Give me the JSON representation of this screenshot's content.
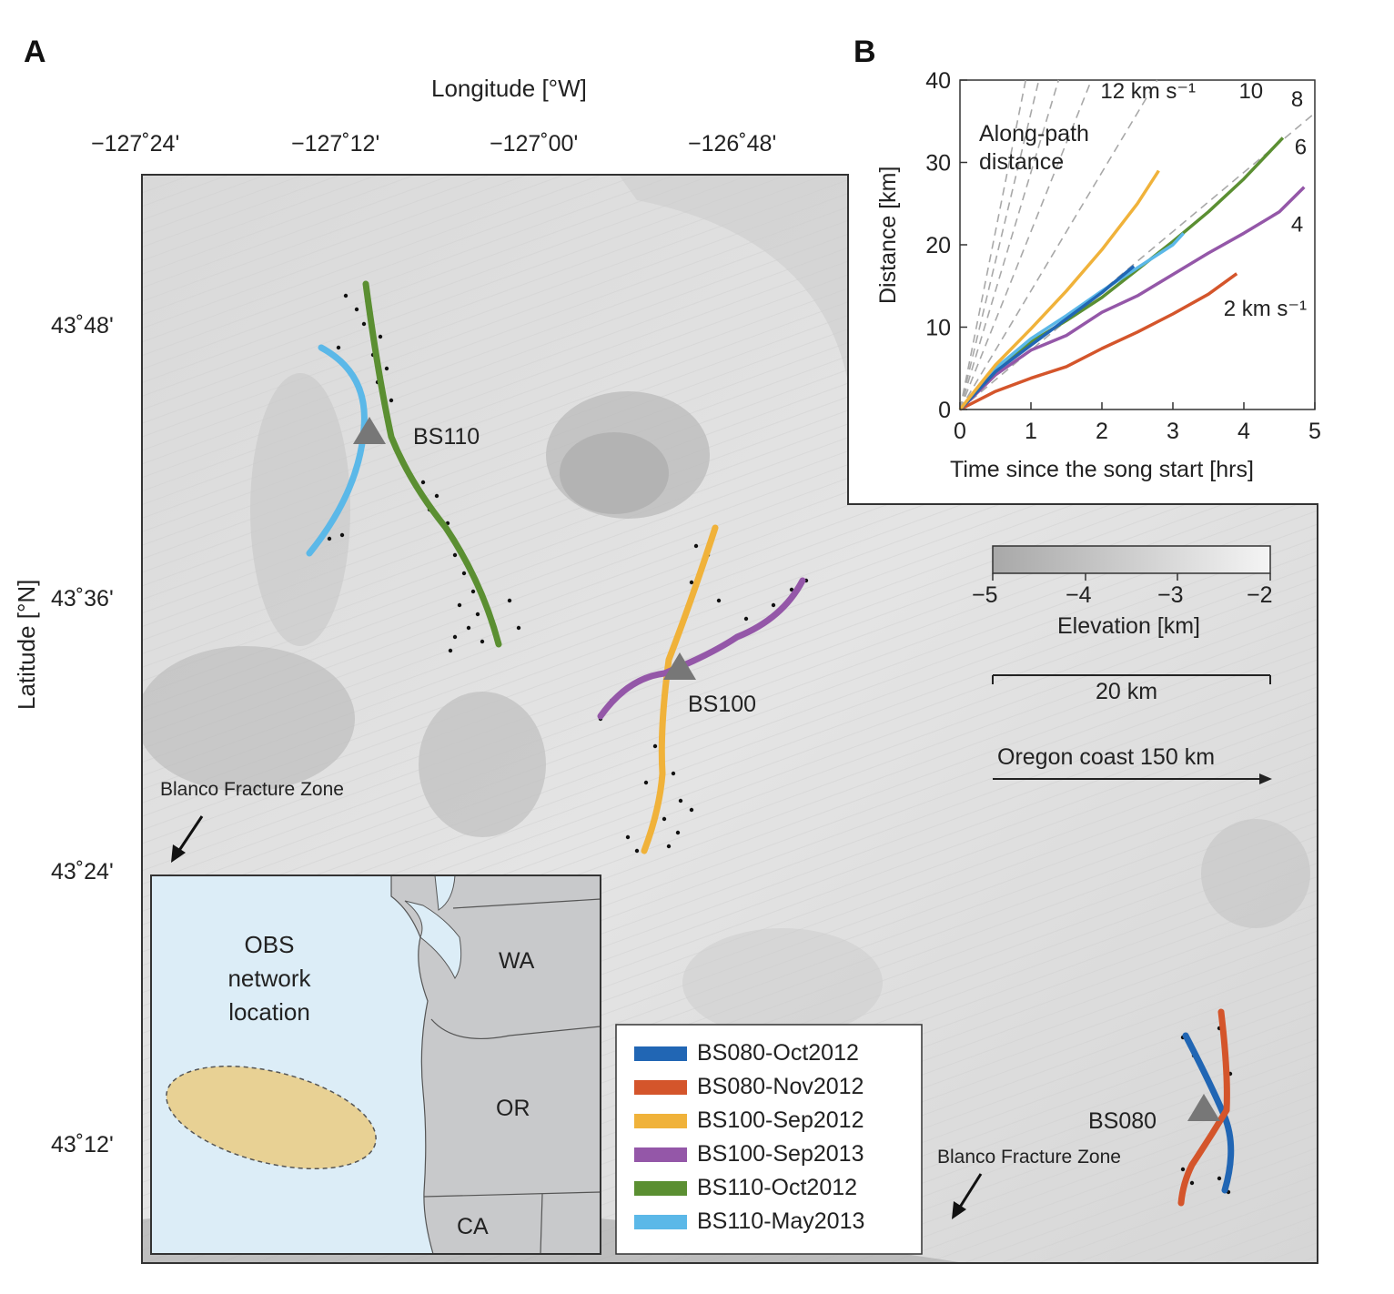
{
  "panels": {
    "a": "A",
    "b": "B"
  },
  "map": {
    "x_axis_title": "Longitude [°W]",
    "y_axis_title": "Latitude [°N]",
    "lon_ticks": [
      "−127˚24'",
      "−127˚12'",
      "−127˚00'",
      "−126˚48'"
    ],
    "lat_ticks": [
      "43˚48'",
      "43˚36'",
      "43˚24'",
      "43˚12'"
    ],
    "stations": [
      "BS110",
      "BS100",
      "BS080"
    ],
    "fracture_zone_label": "Blanco Fracture Zone",
    "colorbar": {
      "title": "Elevation [km]",
      "ticks": [
        "−5",
        "−4",
        "−3",
        "−2"
      ],
      "range_km": [
        -5,
        -2
      ]
    },
    "scalebar_label": "20 km",
    "coast_arrow_label": "Oregon coast 150 km",
    "legend": [
      {
        "label": "BS080-Oct2012",
        "color": "#2166b4"
      },
      {
        "label": "BS080-Nov2012",
        "color": "#d4552b"
      },
      {
        "label": "BS100-Sep2012",
        "color": "#f0b23a"
      },
      {
        "label": "BS100-Sep2013",
        "color": "#9457a8"
      },
      {
        "label": "BS110-Oct2012",
        "color": "#5b8f32"
      },
      {
        "label": "BS110-May2013",
        "color": "#5bb8e8"
      }
    ],
    "inset": {
      "title_lines": [
        "OBS",
        "network",
        "location"
      ],
      "states": [
        "WA",
        "OR",
        "CA"
      ],
      "colors": {
        "ocean": "#dcedf7",
        "land": "#c8c9cb",
        "network": "#e8d194"
      }
    }
  },
  "chart_data": {
    "type": "line",
    "xlabel": "Time since the song start [hrs]",
    "ylabel": "Distance [km]",
    "annotation": "Along-path distance",
    "xlim": [
      0,
      5
    ],
    "ylim": [
      0,
      40
    ],
    "xticks": [
      "0",
      "1",
      "2",
      "3",
      "4",
      "5"
    ],
    "yticks": [
      "0",
      "10",
      "20",
      "30",
      "40"
    ],
    "reference_lines": [
      {
        "speed_kms": 2,
        "label": "2 km s⁻¹"
      },
      {
        "speed_kms": 4,
        "label": "4"
      },
      {
        "speed_kms": 6,
        "label": "6"
      },
      {
        "speed_kms": 8,
        "label": "8"
      },
      {
        "speed_kms": 10,
        "label": "10"
      },
      {
        "speed_kms": 12,
        "label": "12 km s⁻¹"
      }
    ],
    "series": [
      {
        "name": "BS080-Nov2012",
        "color": "#d4552b",
        "x": [
          0,
          0.5,
          1,
          1.5,
          2,
          2.5,
          3,
          3.5,
          3.9
        ],
        "y": [
          0,
          2.2,
          3.8,
          5.2,
          7.4,
          9.4,
          11.6,
          14.0,
          16.5
        ]
      },
      {
        "name": "BS100-Sep2013",
        "color": "#9457a8",
        "x": [
          0,
          0.5,
          1,
          1.5,
          2,
          2.5,
          3,
          3.5,
          4,
          4.5,
          4.85
        ],
        "y": [
          0,
          4.2,
          7.2,
          9.0,
          11.8,
          13.8,
          16.4,
          19.0,
          21.4,
          24.0,
          27.0
        ]
      },
      {
        "name": "BS110-Oct2012",
        "color": "#5b8f32",
        "x": [
          0,
          0.5,
          1,
          1.5,
          2,
          2.5,
          3,
          3.5,
          4,
          4.55
        ],
        "y": [
          0,
          4.6,
          8.2,
          10.8,
          13.6,
          17.0,
          20.4,
          24.0,
          28.0,
          33.0
        ]
      },
      {
        "name": "BS110-May2013",
        "color": "#5bb8e8",
        "x": [
          0,
          0.5,
          1,
          1.5,
          2,
          2.5,
          3,
          3.15
        ],
        "y": [
          0,
          5.0,
          8.6,
          11.4,
          14.4,
          17.2,
          20.0,
          21.4
        ]
      },
      {
        "name": "BS080-Oct2012",
        "color": "#2166b4",
        "x": [
          0,
          0.5,
          1,
          1.5,
          2,
          2.45
        ],
        "y": [
          0,
          4.6,
          7.8,
          11.0,
          14.2,
          17.4
        ]
      },
      {
        "name": "BS100-Sep2012",
        "color": "#f0b23a",
        "x": [
          0,
          0.5,
          1,
          1.5,
          2,
          2.5,
          2.8
        ],
        "y": [
          0,
          5.4,
          9.8,
          14.4,
          19.4,
          25.0,
          29.0
        ]
      }
    ]
  }
}
